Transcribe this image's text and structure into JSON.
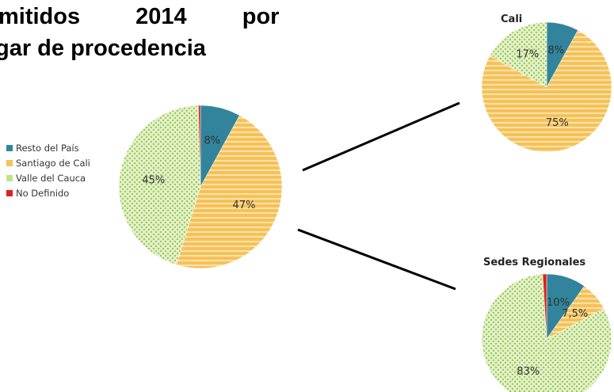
{
  "title_lines": [
    "mitidos 2014 por",
    "gar de procedencia"
  ],
  "chart_data": [
    {
      "type": "pie",
      "categories": [
        "Resto del País",
        "Santiago de Cali",
        "Valle del Cauca",
        "No Definido"
      ],
      "values": [
        8,
        47,
        45,
        0.4
      ],
      "value_labels": [
        "8%",
        "47%",
        "45%",
        null
      ],
      "colors": [
        "#31849b",
        "#f6c15a",
        "#c4e08e",
        "#e0201c"
      ],
      "legend": "left"
    },
    {
      "type": "pie",
      "title": "Cali",
      "categories": [
        "Resto del País",
        "Santiago de Cali",
        "Valle del Cauca",
        "No Definido"
      ],
      "values": [
        8,
        75,
        17,
        0
      ],
      "value_labels": [
        "8%",
        "75%",
        "17%",
        null
      ],
      "colors": [
        "#31849b",
        "#f6c15a",
        "#c4e08e",
        "#e0201c"
      ]
    },
    {
      "type": "pie",
      "title": "Sedes Regionales",
      "categories": [
        "Resto del País",
        "Santiago de Cali",
        "Valle del Cauca",
        "No Definido"
      ],
      "values": [
        10,
        7.5,
        83,
        1
      ],
      "value_labels": [
        "10%",
        "7,5%",
        "83%",
        null
      ],
      "colors": [
        "#31849b",
        "#f6c15a",
        "#c4e08e",
        "#e0201c"
      ]
    }
  ]
}
